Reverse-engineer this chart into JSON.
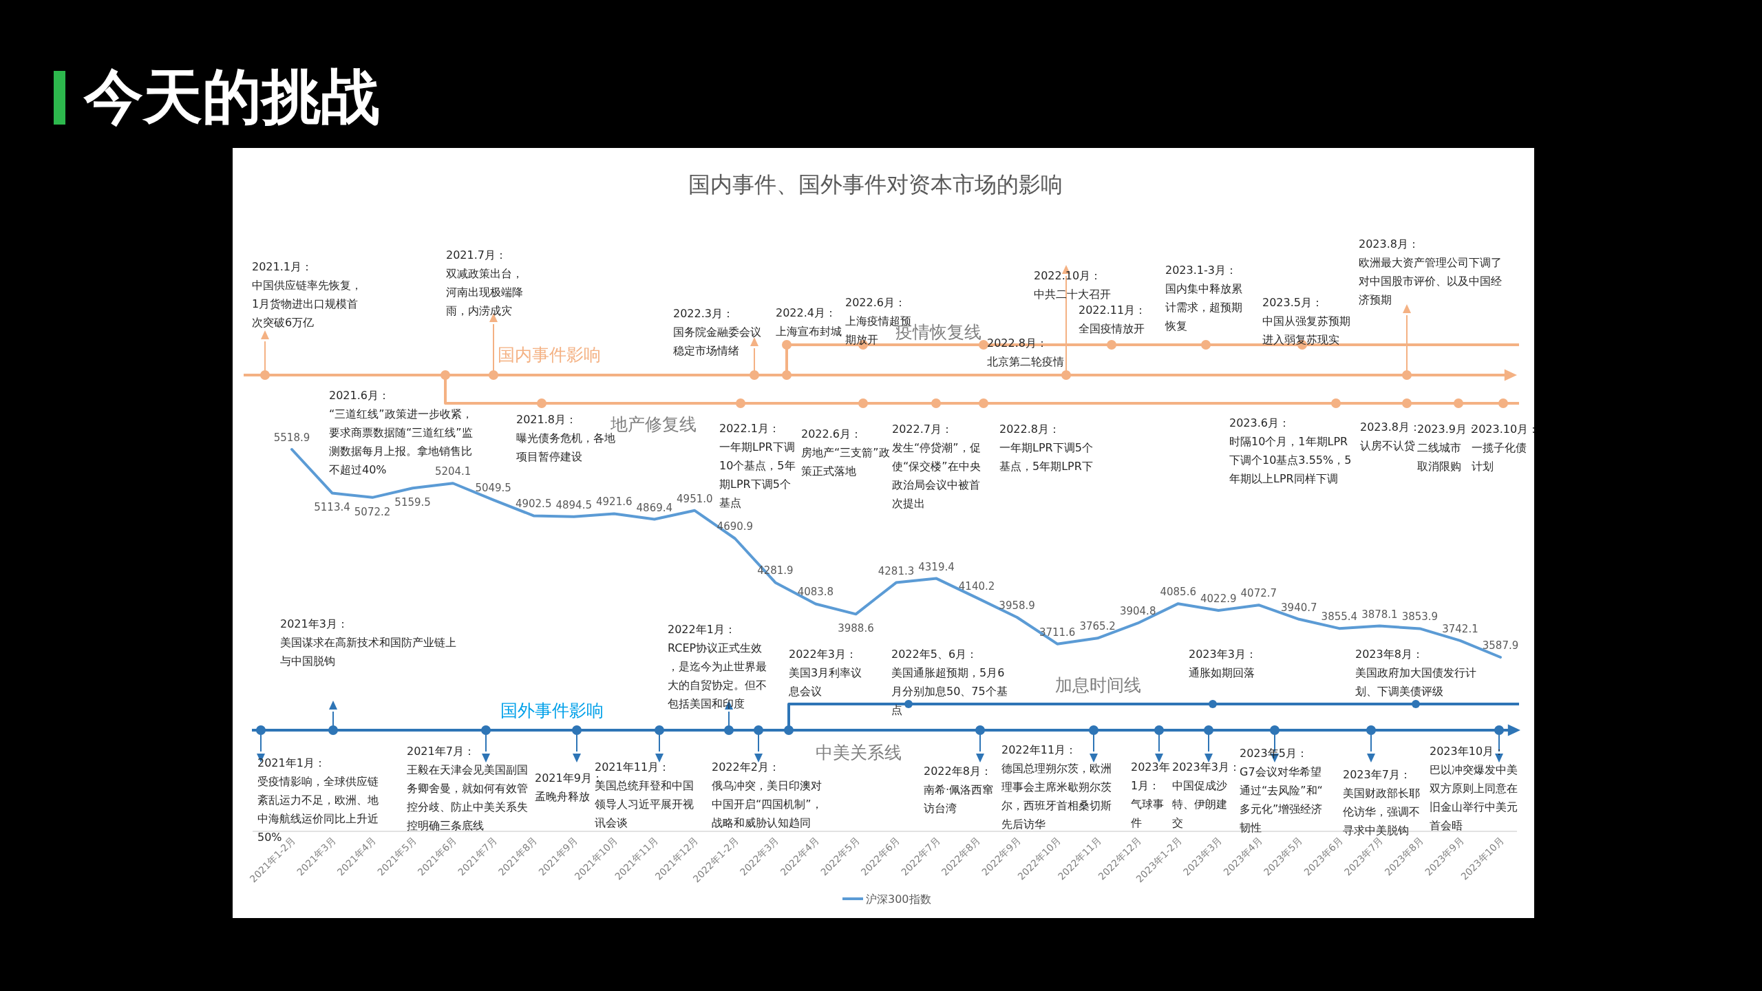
{
  "chart_data": {
    "type": "line",
    "title": "今天的挑战",
    "subtitle": "国内事件、国外事件对资本市场的影响",
    "categories": [
      "2021年1-2月",
      "2021年3月",
      "2021年4月",
      "2021年5月",
      "2021年6月",
      "2021年7月",
      "2021年8月",
      "2021年9月",
      "2021年10月",
      "2021年11月",
      "2021年12月",
      "2022年1-2月",
      "2022年3月",
      "2022年4月",
      "2022年5月",
      "2022年6月",
      "2022年7月",
      "2022年8月",
      "2022年9月",
      "2022年10月",
      "2022年11月",
      "2022年12月",
      "2023年1-2月",
      "2023年3月",
      "2023年4月",
      "2023年5月",
      "2023年6月",
      "2023年7月",
      "2023年8月",
      "2023年9月",
      "2023年10月"
    ],
    "series": [
      {
        "name": "沪深300指数",
        "color": "#5b9bd5",
        "values": [
          5518.9,
          5113.4,
          5072.2,
          5159.5,
          5204.1,
          5049.5,
          4902.5,
          4894.5,
          4921.6,
          4869.4,
          4951.0,
          4690.9,
          4281.9,
          4083.8,
          3988.6,
          4281.3,
          4319.4,
          4140.2,
          3958.9,
          3711.6,
          3765.2,
          3904.8,
          4085.6,
          4022.9,
          4072.7,
          3940.7,
          3855.4,
          3878.1,
          3853.9,
          3742.1,
          3587.9
        ],
        "value_labels": [
          "5518.9",
          "5113.4",
          "5072.2",
          "5159.5",
          "5204.1",
          "5049.5",
          "4902.5",
          "4894.5",
          "4921.6",
          "4869.4",
          "4951.0",
          "4690.9",
          "4281.9",
          "4083.8",
          "3988.6",
          "4281.3",
          "4319.4",
          "4140.2",
          "3958.9",
          "3711.6",
          "3765.2",
          "3904.8",
          "4085.6",
          "4022.9",
          "4072.7",
          "3940.7",
          "3855.4",
          "3878.1",
          "3853.9",
          "3742.1",
          "3587.9"
        ]
      }
    ],
    "legend": "bottom",
    "annotations": [
      "2021.1月：中国供应链率先恢复，1月货物进出口规模首次突破6万亿",
      "2021.7月：双减政策出台，河南出现极端降雨，内涝成灾",
      "2022.3月：国务院金融委会议稳定市场情绪",
      "2022.4月：上海宣布封城",
      "2022.6月：上海疫情超预期放开",
      "2022.8月：北京第二轮疫情",
      "2022.10月：中共二十大召开",
      "2022.11月：全国疫情放开",
      "2023.1-3月：国内集中释放累计需求，超预期恢复",
      "2023.5月：中国从强复苏预期进入弱复苏现实",
      "2023.8月：欧洲最大资产管理公司下调了对中国股市评价、以及中国经济预期",
      "2021.6月：“三道红线”政策进一步收紧，要求商票数据随“三道红线”监测数据每月上报。拿地销售比不超过40%",
      "2021.8月：曝光债务危机，各地项目暂停建设",
      "2022.1月：一年期LPR下调10个基点，5年期LPR下调5个基点",
      "2022.6月：房地产“三支箭”政策正式落地",
      "2022.7月：发生“停贷潮”，促使“保交楼”在中央政治局会议中被首次提出",
      "2022.8月：一年期LPR下调5个基点，5年期LPR下",
      "2023.6月：时隔10个月，1年期LPR下调个10基点3.55%，5年期以上LPR同样下调",
      "2023.8月：认房不认贷",
      "2023.9月：二线城市取消限购",
      "2023.10月：一揽子化债计划",
      "2021年3月：美国谋求在高新技术和国防产业链上与中国脱钩",
      "2022年1月：RCEP协议正式生效，是迄今为止世界最大的自贸协定。但不包括美国和印度",
      "2022年3月：美国3月利率议息会议",
      "2022年5、6月：美国通胀超预期，5月6月分别加息50、75个基点",
      "2023年3月：通胀如期回落",
      "2023年8月：美国政府加大国债发行计划、下调美债评级",
      "2021年1月：受疫情影响，全球供应链紊乱运力不足，欧洲、地中海航线运价同比上升近50%",
      "2021年7月：王毅在天津会见美国副国务卿舍曼，就如何有效管控分歧、防止中美关系失控明确三条底线",
      "2021年9月：孟晚舟释放",
      "2021年11月：美国总统拜登和中国领导人习近平展开视讯会谈",
      "2022年2月：俄乌冲突，美日印澳对中国开启“四国机制”，战略和威胁认知趋同",
      "2022年8月：南希·佩洛西窜访台湾",
      "2022年11月：德国总理朔尔茨，欧洲理事会主席米歇朔尔茨尔，西班牙首相桑切斯先后访华",
      "2023年1月：气球事件",
      "2023年3月：中国促成沙特、伊朗建交",
      "2023年5月：G7会议对华希望通过“去风险”和“多元化”增强经济韧性",
      "2023年7月：美国财政部长耶伦访华，强调不寻求中美脱钩",
      "2023年10月：巴以冲突爆发中美双方原则上同意在旧金山举行中美元首会晤",
      "国内事件影响",
      "地产修复线",
      "疫情恢复线",
      "国外事件影响",
      "中美关系线",
      "加息时间线"
    ]
  }
}
